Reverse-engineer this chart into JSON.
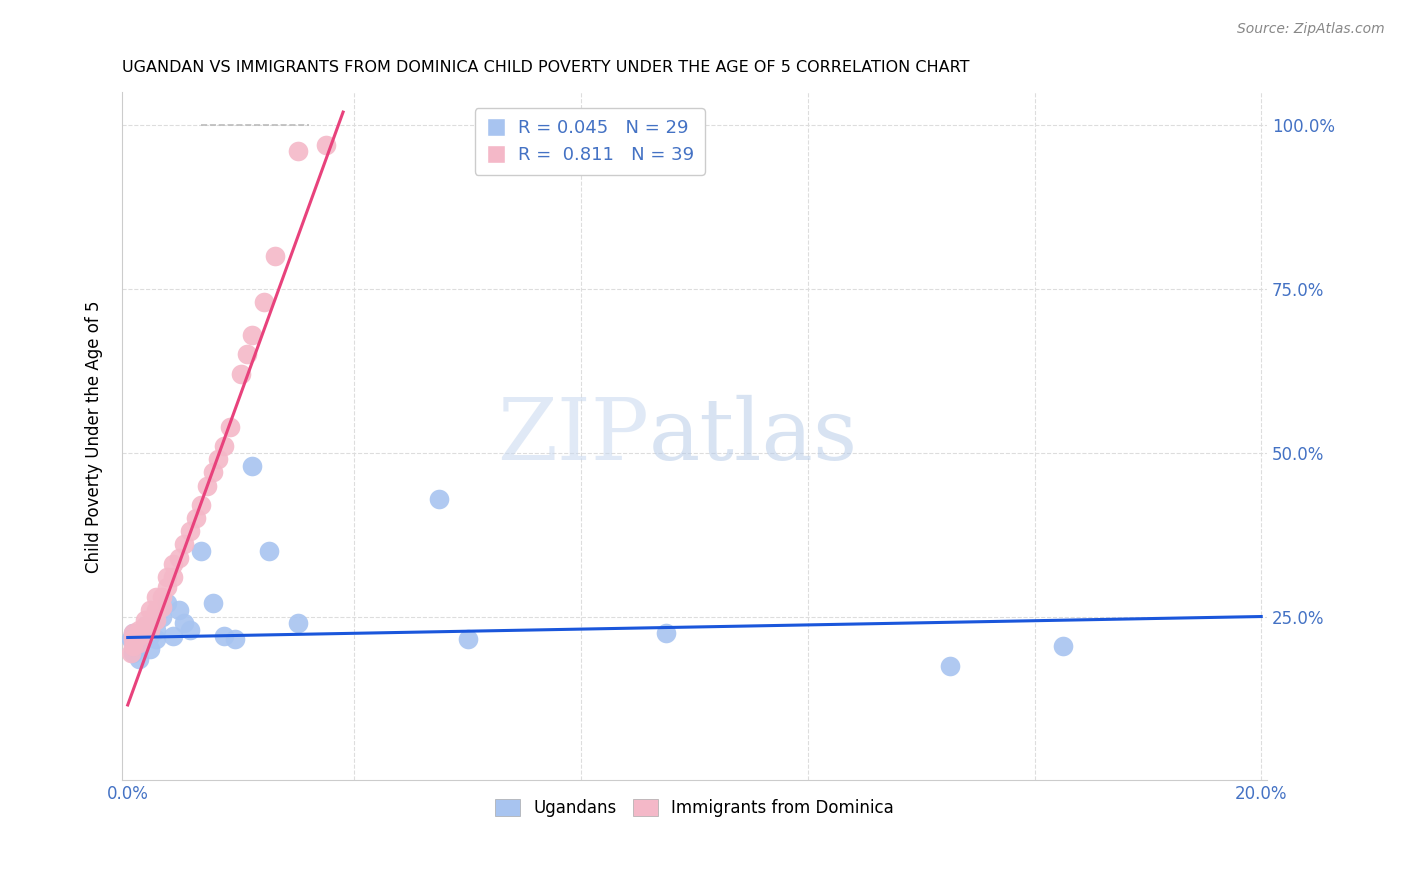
{
  "title": "UGANDAN VS IMMIGRANTS FROM DOMINICA CHILD POVERTY UNDER THE AGE OF 5 CORRELATION CHART",
  "source": "Source: ZipAtlas.com",
  "ylabel": "Child Poverty Under the Age of 5",
  "right_yticklabels": [
    "",
    "25.0%",
    "50.0%",
    "75.0%",
    "100.0%"
  ],
  "xlim": [
    0.0,
    0.2
  ],
  "ylim": [
    0.0,
    1.05
  ],
  "ugandan_R": 0.045,
  "ugandan_N": 29,
  "dominica_R": 0.811,
  "dominica_N": 39,
  "ugandan_color": "#a8c4f0",
  "dominica_color": "#f4b8c8",
  "ugandan_trend_color": "#1a56db",
  "dominica_trend_color": "#e8427c",
  "watermark_zip": "ZIP",
  "watermark_atlas": "atlas",
  "ugandan_x": [
    0.0005,
    0.001,
    0.001,
    0.002,
    0.002,
    0.003,
    0.003,
    0.004,
    0.004,
    0.005,
    0.005,
    0.006,
    0.007,
    0.008,
    0.009,
    0.01,
    0.011,
    0.013,
    0.015,
    0.017,
    0.019,
    0.022,
    0.025,
    0.03,
    0.055,
    0.06,
    0.095,
    0.145,
    0.165
  ],
  "ugandan_y": [
    0.215,
    0.195,
    0.225,
    0.185,
    0.21,
    0.215,
    0.235,
    0.2,
    0.22,
    0.215,
    0.23,
    0.25,
    0.27,
    0.22,
    0.26,
    0.24,
    0.23,
    0.35,
    0.27,
    0.22,
    0.215,
    0.48,
    0.35,
    0.24,
    0.43,
    0.215,
    0.225,
    0.175,
    0.205
  ],
  "dominica_x": [
    0.0005,
    0.001,
    0.001,
    0.001,
    0.002,
    0.002,
    0.002,
    0.003,
    0.003,
    0.003,
    0.004,
    0.004,
    0.004,
    0.005,
    0.005,
    0.005,
    0.006,
    0.006,
    0.007,
    0.007,
    0.008,
    0.008,
    0.009,
    0.01,
    0.011,
    0.012,
    0.013,
    0.014,
    0.015,
    0.016,
    0.017,
    0.018,
    0.02,
    0.021,
    0.022,
    0.024,
    0.026,
    0.03,
    0.035
  ],
  "dominica_y": [
    0.195,
    0.205,
    0.215,
    0.225,
    0.21,
    0.22,
    0.23,
    0.225,
    0.235,
    0.245,
    0.23,
    0.24,
    0.26,
    0.245,
    0.26,
    0.28,
    0.265,
    0.28,
    0.295,
    0.31,
    0.31,
    0.33,
    0.34,
    0.36,
    0.38,
    0.4,
    0.42,
    0.45,
    0.47,
    0.49,
    0.51,
    0.54,
    0.62,
    0.65,
    0.68,
    0.73,
    0.8,
    0.96,
    0.97
  ],
  "ug_trend_x0": 0.0,
  "ug_trend_x1": 0.2,
  "ug_trend_y0": 0.218,
  "ug_trend_y1": 0.25,
  "dom_trend_x0": 0.0,
  "dom_trend_x1": 0.038,
  "dom_trend_y0": 0.115,
  "dom_trend_y1": 1.02,
  "dash_trend_x0": 0.013,
  "dash_trend_x1": 0.032,
  "dash_trend_y0": 1.0,
  "dash_trend_y1": 1.0
}
